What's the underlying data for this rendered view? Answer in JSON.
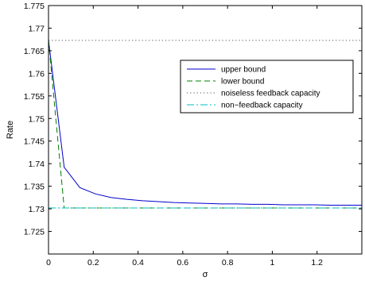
{
  "chart_data": {
    "type": "line",
    "xlabel": "σ",
    "ylabel": "Rate",
    "xlim": [
      0,
      1.4
    ],
    "ylim": [
      1.72,
      1.775
    ],
    "x_ticks": [
      0,
      0.2,
      0.4,
      0.6,
      0.8,
      1,
      1.2
    ],
    "x_tick_labels": [
      "0",
      "0.2",
      "0.4",
      "0.6",
      "0.8",
      "1",
      "1.2"
    ],
    "y_ticks": [
      1.725,
      1.73,
      1.735,
      1.74,
      1.745,
      1.75,
      1.755,
      1.76,
      1.765,
      1.77,
      1.775
    ],
    "y_tick_labels": [
      "1.725",
      "1.73",
      "1.735",
      "1.74",
      "1.745",
      "1.75",
      "1.755",
      "1.76",
      "1.765",
      "1.77",
      "1.775"
    ],
    "grid": false,
    "legend_position": "upper-right",
    "series": [
      {
        "name": "upper bound",
        "color": "#0000cc",
        "style": "solid",
        "x": [
          0,
          0.07,
          0.14,
          0.21,
          0.28,
          0.35,
          0.42,
          0.49,
          0.56,
          0.63,
          0.7,
          0.77,
          0.84,
          0.91,
          0.98,
          1.05,
          1.12,
          1.19,
          1.26,
          1.33,
          1.4
        ],
        "y": [
          1.7673,
          1.7392,
          1.7347,
          1.7333,
          1.7325,
          1.7321,
          1.7318,
          1.7316,
          1.7314,
          1.7313,
          1.7312,
          1.7311,
          1.7311,
          1.731,
          1.731,
          1.7309,
          1.7309,
          1.7309,
          1.7308,
          1.7308,
          1.7308
        ]
      },
      {
        "name": "lower bound",
        "color": "#008000",
        "style": "dashed",
        "x": [
          0,
          0.07,
          0.14,
          0.21,
          0.28,
          0.35,
          0.42,
          0.49,
          0.56,
          0.63,
          0.7,
          0.77,
          0.84,
          0.91,
          0.98,
          1.05,
          1.12,
          1.19,
          1.26,
          1.33,
          1.4
        ],
        "y": [
          1.7673,
          1.7302,
          1.7302,
          1.7302,
          1.7302,
          1.7302,
          1.7302,
          1.7302,
          1.7302,
          1.7302,
          1.7302,
          1.7302,
          1.7302,
          1.7302,
          1.7302,
          1.7302,
          1.7302,
          1.7302,
          1.7302,
          1.7302,
          1.7302
        ]
      },
      {
        "name": "noiseless feedback capacity",
        "color": "#555555",
        "style": "dotted",
        "x": [
          0,
          1.4
        ],
        "y": [
          1.7673,
          1.7673
        ]
      },
      {
        "name": "non−feedback capacity",
        "color": "#00bfbf",
        "style": "dashdot",
        "x": [
          0,
          1.4
        ],
        "y": [
          1.7302,
          1.7302
        ]
      }
    ]
  }
}
